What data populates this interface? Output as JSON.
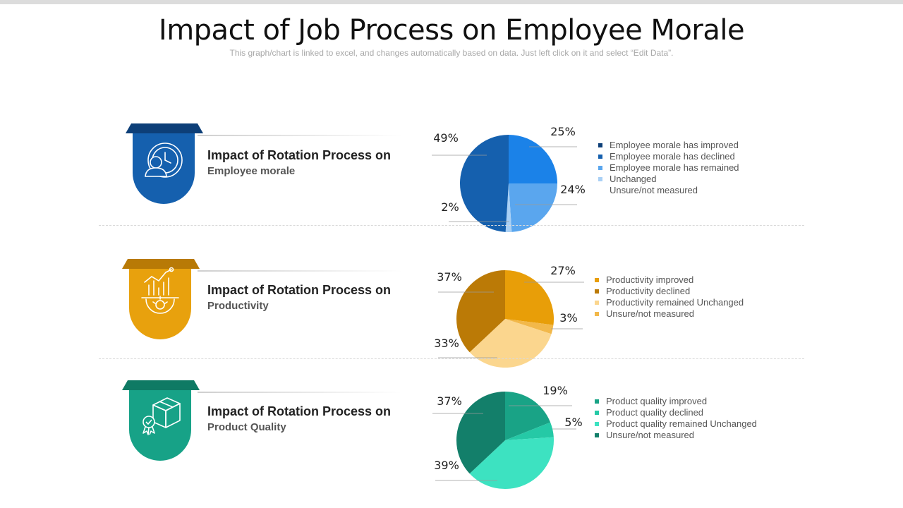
{
  "page": {
    "title": "Impact of Job Process on Employee Morale",
    "subtitle": "This graph/chart is linked to excel, and changes automatically based on data. Just left click on it and select “Edit Data”."
  },
  "rows": [
    {
      "heading": "Impact of Rotation Process on",
      "subheading": "Employee morale",
      "icon": "employee-clock-icon",
      "badge_color": "#1560ae",
      "badge_dark": "#0d3f78"
    },
    {
      "heading": "Impact of Rotation Process on",
      "subheading": "Productivity",
      "icon": "productivity-chart-gear-icon",
      "badge_color": "#e8a10d",
      "badge_dark": "#b87a06"
    },
    {
      "heading": "Impact of Rotation Process on",
      "subheading": "Product Quality",
      "icon": "box-quality-badge-icon",
      "badge_color": "#17a287",
      "badge_dark": "#0f7a64"
    }
  ],
  "chart_data": [
    {
      "type": "pie",
      "title": "Employee morale",
      "slices": [
        {
          "label": "25%",
          "value": 25,
          "color": "#1b82e8"
        },
        {
          "label": "24%",
          "value": 24,
          "color": "#5aa6ee"
        },
        {
          "label": "2%",
          "value": 2,
          "color": "#a9d0f5"
        },
        {
          "label": "49%",
          "value": 49,
          "color": "#1560ae"
        }
      ],
      "legend": [
        {
          "text": "Employee morale has improved",
          "color": "#0d3f78"
        },
        {
          "text": "Employee morale has declined",
          "color": "#1560ae"
        },
        {
          "text": "Employee morale has remained",
          "color": "#5aa6ee"
        },
        {
          "text": "Unchanged",
          "color": "#a9d0f5"
        },
        {
          "text": "Unsure/not measured",
          "color": null
        }
      ]
    },
    {
      "type": "pie",
      "title": "Productivity",
      "slices": [
        {
          "label": "27%",
          "value": 27,
          "color": "#e89e08"
        },
        {
          "label": "3%",
          "value": 3,
          "color": "#f2b84a"
        },
        {
          "label": "33%",
          "value": 33,
          "color": "#fbd68e"
        },
        {
          "label": "37%",
          "value": 37,
          "color": "#bb7a06"
        }
      ],
      "legend": [
        {
          "text": "Productivity improved",
          "color": "#e89e08"
        },
        {
          "text": "Productivity declined",
          "color": "#bb7a06"
        },
        {
          "text": "Productivity remained Unchanged",
          "color": "#fbd68e"
        },
        {
          "text": "Unsure/not measured",
          "color": "#f2b84a"
        }
      ]
    },
    {
      "type": "pie",
      "title": "Product Quality",
      "slices": [
        {
          "label": "19%",
          "value": 19,
          "color": "#19a386"
        },
        {
          "label": "5%",
          "value": 5,
          "color": "#25c9a6"
        },
        {
          "label": "39%",
          "value": 39,
          "color": "#3de2c1"
        },
        {
          "label": "37%",
          "value": 37,
          "color": "#137f6a"
        }
      ],
      "legend": [
        {
          "text": "Product quality improved",
          "color": "#19a386"
        },
        {
          "text": "Product quality declined",
          "color": "#25c9a6"
        },
        {
          "text": "Product quality remained Unchanged",
          "color": "#3de2c1"
        },
        {
          "text": "Unsure/not measured",
          "color": "#137f6a"
        }
      ]
    }
  ]
}
